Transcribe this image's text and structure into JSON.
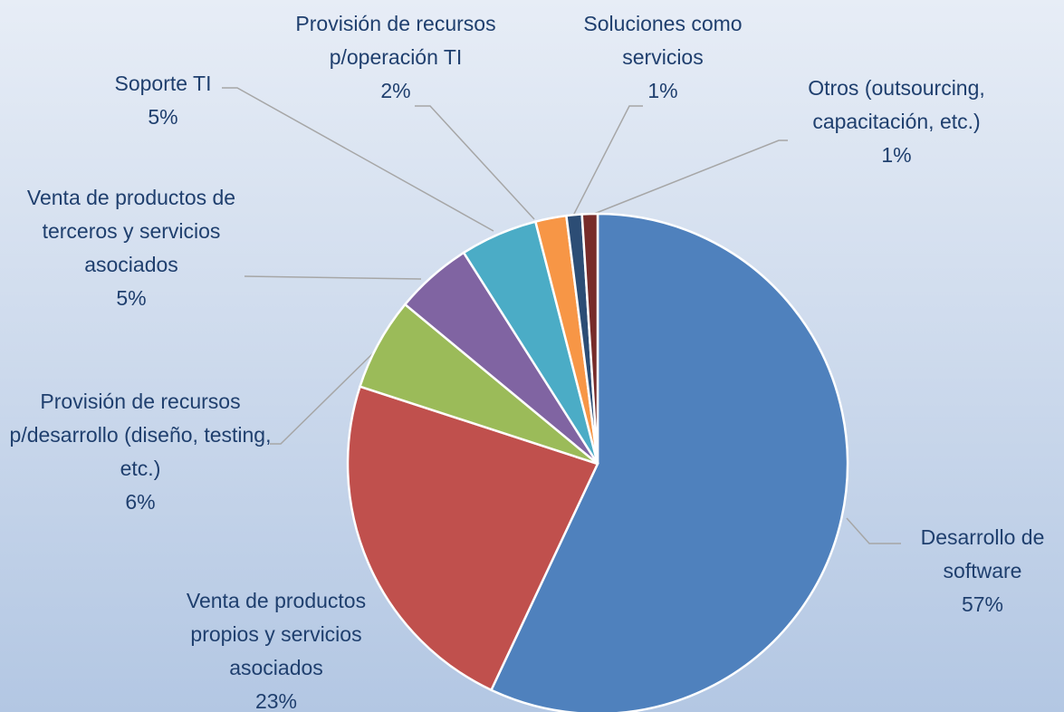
{
  "chart_data": {
    "type": "pie",
    "categories": [
      "Desarrollo de software",
      "Venta de productos propios y servicios asociados",
      "Provisión de recursos p/desarrollo (diseño, testing, etc.)",
      "Venta de productos de terceros y servicios asociados",
      "Soporte TI",
      "Provisión de recursos p/operación TI",
      "Soluciones como servicios",
      "Otros (outsourcing, capacitación, etc.)"
    ],
    "values": [
      57,
      23,
      6,
      5,
      5,
      2,
      1,
      1
    ],
    "value_labels": [
      "57%",
      "23%",
      "6%",
      "5%",
      "5%",
      "2%",
      "1%",
      "1%"
    ],
    "colors": [
      "#4f81bd",
      "#c0504d",
      "#9bbb59",
      "#8064a2",
      "#4bacc6",
      "#f79646",
      "#2c4d75",
      "#772c2a"
    ]
  }
}
